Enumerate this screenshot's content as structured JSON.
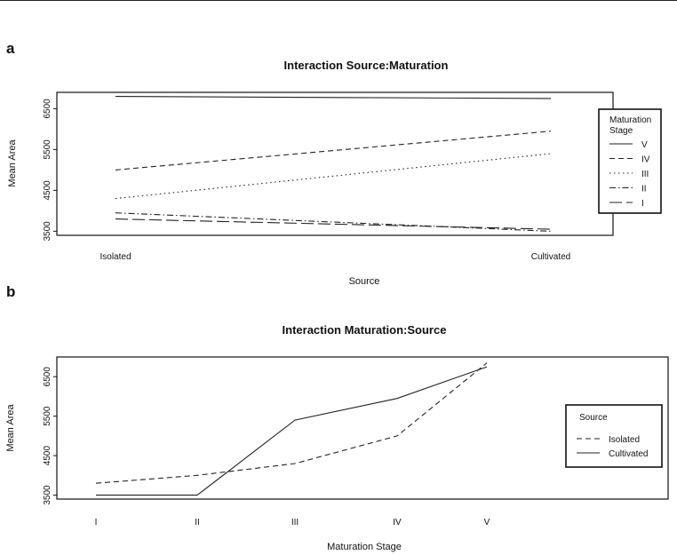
{
  "chart_data": [
    {
      "panel_label": "a",
      "type": "line",
      "title": "Interaction Source:Maturation",
      "xlabel": "Source",
      "ylabel": "Mean Area",
      "categories": [
        "Isolated",
        "Cultivated"
      ],
      "yticks": [
        "3500",
        "4500",
        "5500",
        "6500"
      ],
      "ylim": [
        3400,
        6900
      ],
      "legend_title": "Maturation Stage",
      "legend_position": "right",
      "series": [
        {
          "name": "V",
          "values": [
            6800,
            6750
          ]
        },
        {
          "name": "IV",
          "values": [
            5000,
            5950
          ]
        },
        {
          "name": "III",
          "values": [
            4300,
            5400
          ]
        },
        {
          "name": "II",
          "values": [
            3950,
            3500
          ]
        },
        {
          "name": "I",
          "values": [
            3800,
            3550
          ]
        }
      ]
    },
    {
      "panel_label": "b",
      "type": "line",
      "title": "Interaction Maturation:Source",
      "xlabel": "Maturation Stage",
      "ylabel": "Mean Area",
      "categories": [
        "I",
        "II",
        "III",
        "IV",
        "V"
      ],
      "yticks": [
        "3500",
        "4500",
        "5500",
        "6500"
      ],
      "ylim": [
        3400,
        7000
      ],
      "legend_title": "Source",
      "legend_position": "right",
      "series": [
        {
          "name": "Isolated",
          "values": [
            3800,
            4000,
            4300,
            5000,
            6850
          ]
        },
        {
          "name": "Cultivated",
          "values": [
            3500,
            3500,
            5400,
            5950,
            6750
          ]
        }
      ]
    }
  ]
}
